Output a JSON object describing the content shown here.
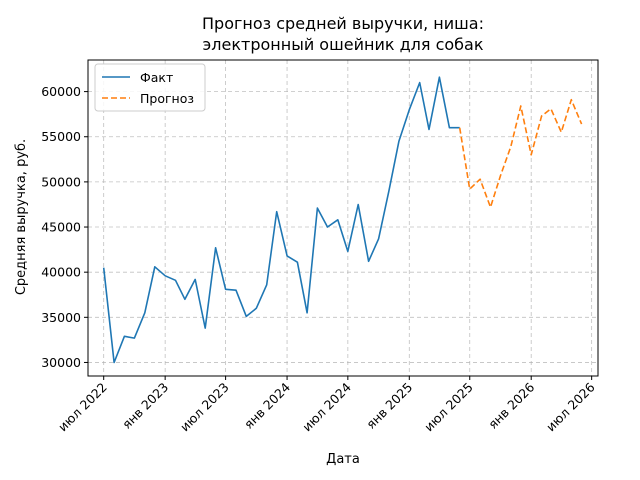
{
  "chart_data": {
    "type": "line",
    "title": [
      "Прогноз средней выручки, ниша:",
      "электронный ошейник для собак"
    ],
    "xlabel": "Дата",
    "ylabel": "Средняя выручка, руб.",
    "ylim": [
      28500,
      63500
    ],
    "xlim": [
      "2022-05-15",
      "2026-07-20"
    ],
    "grid": true,
    "legend_position": "top-left",
    "y_ticks": [
      30000,
      35000,
      40000,
      45000,
      50000,
      55000,
      60000
    ],
    "x_ticks": [
      {
        "date": "2022-07-01",
        "label": "июл 2022"
      },
      {
        "date": "2023-01-01",
        "label": "янв 2023"
      },
      {
        "date": "2023-07-01",
        "label": "июл 2023"
      },
      {
        "date": "2024-01-01",
        "label": "янв 2024"
      },
      {
        "date": "2024-07-01",
        "label": "июл 2024"
      },
      {
        "date": "2025-01-01",
        "label": "янв 2025"
      },
      {
        "date": "2025-07-01",
        "label": "июл 2025"
      },
      {
        "date": "2026-01-01",
        "label": "янв 2026"
      },
      {
        "date": "2026-07-01",
        "label": "июл 2026"
      }
    ],
    "series": [
      {
        "name": "Факт",
        "color": "#1f77b4",
        "style": "solid",
        "x": [
          "2022-07-01",
          "2022-08-01",
          "2022-09-01",
          "2022-10-01",
          "2022-11-01",
          "2022-12-01",
          "2023-01-01",
          "2023-02-01",
          "2023-03-01",
          "2023-04-01",
          "2023-05-01",
          "2023-06-01",
          "2023-07-01",
          "2023-08-01",
          "2023-09-01",
          "2023-10-01",
          "2023-11-01",
          "2023-12-01",
          "2024-01-01",
          "2024-02-01",
          "2024-03-01",
          "2024-04-01",
          "2024-05-01",
          "2024-06-01",
          "2024-07-01",
          "2024-08-01",
          "2024-09-01",
          "2024-10-01",
          "2024-11-01",
          "2024-12-01",
          "2025-01-01",
          "2025-02-01",
          "2025-03-01",
          "2025-04-01",
          "2025-05-01",
          "2025-06-01"
        ],
        "y": [
          40500,
          30000,
          32900,
          32700,
          35500,
          40600,
          39600,
          39100,
          37000,
          39200,
          33800,
          42700,
          38100,
          38000,
          35100,
          36000,
          38600,
          46700,
          41800,
          41100,
          35500,
          47100,
          45000,
          45800,
          42300,
          47500,
          41200,
          43700,
          49000,
          54500,
          58000,
          61000,
          55800,
          61600,
          56000,
          56000
        ]
      },
      {
        "name": "Прогноз",
        "color": "#ff7f0e",
        "style": "dashed",
        "x": [
          "2025-06-01",
          "2025-07-01",
          "2025-08-01",
          "2025-09-01",
          "2025-10-01",
          "2025-11-01",
          "2025-12-01",
          "2026-01-01",
          "2026-02-01",
          "2026-03-01",
          "2026-04-01",
          "2026-05-01",
          "2026-06-01"
        ],
        "y": [
          56000,
          49200,
          50300,
          47200,
          50700,
          53900,
          58400,
          53000,
          57300,
          58100,
          55500,
          59100,
          56400
        ]
      }
    ]
  }
}
